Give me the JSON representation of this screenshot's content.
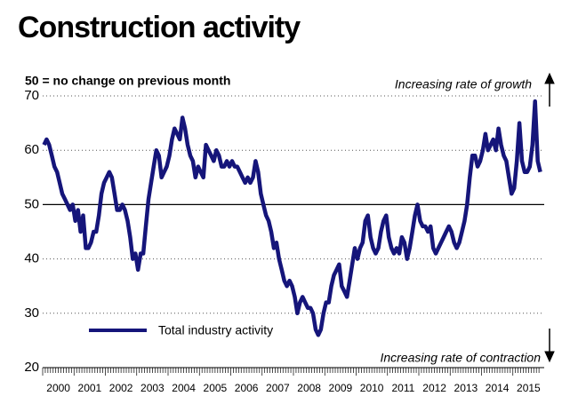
{
  "chart_data": {
    "type": "line",
    "title": "Construction activity",
    "subtitle": "50 = no change on previous month",
    "annotations": [
      "Increasing rate of growth",
      "Increasing rate of contraction"
    ],
    "reference_line": 50,
    "categories": [
      "2000",
      null,
      null,
      null,
      null,
      null,
      null,
      null,
      null,
      null,
      null,
      null,
      "2001",
      null,
      null,
      null,
      null,
      null,
      null,
      null,
      null,
      null,
      null,
      null,
      "2002",
      null,
      null,
      null,
      null,
      null,
      null,
      null,
      null,
      null,
      null,
      null,
      "2003",
      null,
      null,
      null,
      null,
      null,
      null,
      null,
      null,
      null,
      null,
      null,
      "2004",
      null,
      null,
      null,
      null,
      null,
      null,
      null,
      null,
      null,
      null,
      null,
      "2005",
      null,
      null,
      null,
      null,
      null,
      null,
      null,
      null,
      null,
      null,
      null,
      "2006",
      null,
      null,
      null,
      null,
      null,
      null,
      null,
      null,
      null,
      null,
      null,
      "2007",
      null,
      null,
      null,
      null,
      null,
      null,
      null,
      null,
      null,
      null,
      null,
      "2008",
      null,
      null,
      null,
      null,
      null,
      null,
      null,
      null,
      null,
      null,
      null,
      "2009",
      null,
      null,
      null,
      null,
      null,
      null,
      null,
      null,
      null,
      null,
      null,
      "2010",
      null,
      null,
      null,
      null,
      null,
      null,
      null,
      null,
      null,
      null,
      null,
      "2011",
      null,
      null,
      null,
      null,
      null,
      null,
      null,
      null,
      null,
      null,
      null,
      "2012",
      null,
      null,
      null,
      null,
      null,
      null,
      null,
      null,
      null,
      null,
      null,
      "2013",
      null,
      null,
      null,
      null,
      null,
      null,
      null,
      null,
      null,
      null,
      null,
      "2014",
      null,
      null,
      null,
      null,
      null,
      null,
      null,
      null,
      null,
      null,
      null,
      "2015",
      null,
      null,
      null,
      null,
      null,
      null,
      null,
      null,
      null,
      null
    ],
    "series": [
      {
        "name": "Total industry activity",
        "color": "#15157a",
        "values": [
          61,
          62,
          61,
          59,
          57,
          56,
          54,
          52,
          51,
          50,
          49,
          50,
          47,
          49,
          45,
          48,
          42,
          42,
          43,
          45,
          45,
          48,
          52,
          54,
          55,
          56,
          55,
          52,
          49,
          49,
          50,
          49,
          47,
          44,
          40,
          41,
          38,
          41,
          41,
          46,
          51,
          54,
          57,
          60,
          59,
          55,
          56,
          57,
          59,
          62,
          64,
          63,
          62,
          66,
          64,
          61,
          59,
          58,
          55,
          57,
          56,
          55,
          61,
          60,
          59,
          58,
          60,
          59,
          57,
          57,
          58,
          57,
          58,
          57,
          57,
          56,
          55,
          54,
          55,
          54,
          55,
          58,
          56,
          52,
          50,
          48,
          47,
          45,
          42,
          43,
          40,
          38,
          36,
          35,
          36,
          35,
          33,
          30,
          32,
          33,
          32,
          31,
          31,
          30,
          27,
          26,
          27,
          30,
          32,
          32,
          35,
          37,
          38,
          39,
          35,
          34,
          33,
          36,
          39,
          42,
          40,
          42,
          43,
          47,
          48,
          44,
          42,
          41,
          42,
          45,
          47,
          48,
          44,
          42,
          41,
          42,
          41,
          44,
          43,
          40,
          42,
          45,
          48,
          50,
          47,
          46,
          46,
          45,
          46,
          42,
          41,
          42,
          43,
          44,
          45,
          46,
          45,
          43,
          42,
          43,
          45,
          47,
          50,
          55,
          59,
          59,
          57,
          58,
          60,
          63,
          60,
          61,
          62,
          60,
          64,
          61,
          59,
          58,
          55,
          52,
          53,
          58,
          65,
          58,
          56,
          56,
          57,
          61,
          69,
          58,
          56
        ]
      }
    ],
    "ylim": [
      20,
      70
    ],
    "yticks": [
      20,
      30,
      40,
      50,
      60,
      70
    ],
    "grid": true
  }
}
